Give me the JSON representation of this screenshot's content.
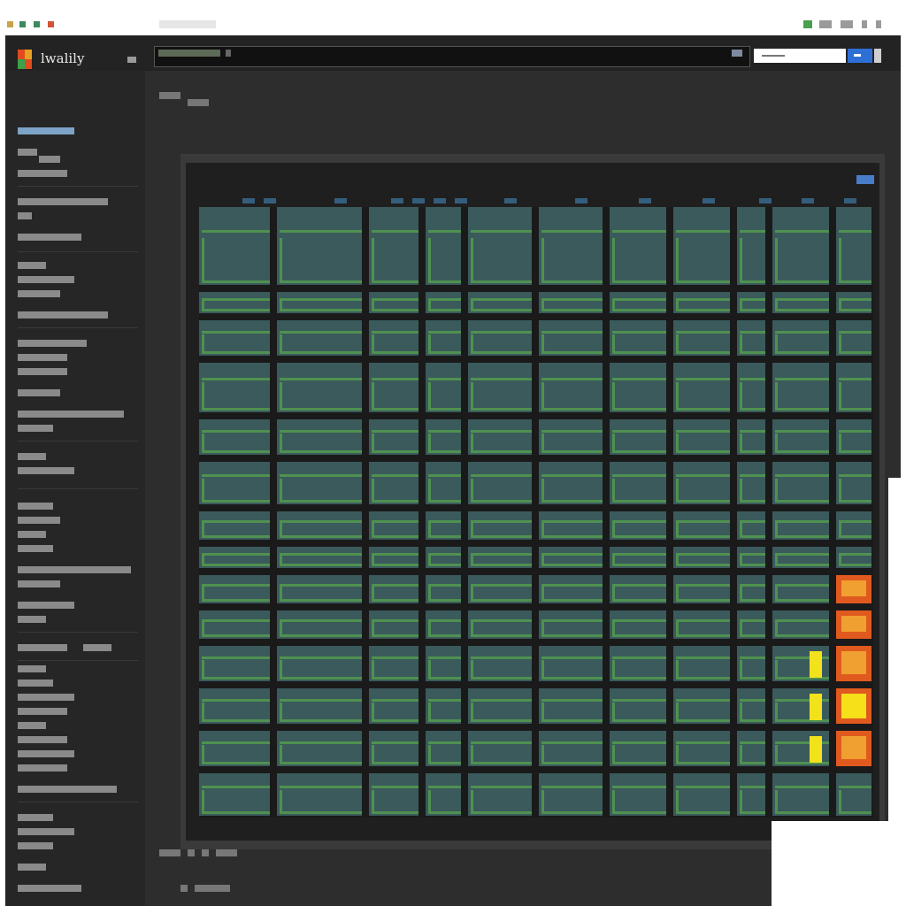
{
  "app": {
    "brand": "lwalily"
  },
  "header": {
    "email_placeholder": ""
  },
  "colors": {
    "accent": "#2e6fd6",
    "cell": "#3b5a5c",
    "cell_stroke": "#4f9150",
    "alert_orange": "#e05a1f",
    "alert_amber": "#f0a030",
    "alert_yellow": "#f2e21c"
  },
  "icons": {
    "logo": "app-logo-icon",
    "search": "search-icon",
    "go": "arrow-right-icon"
  },
  "grid": {
    "rows": 15,
    "columns": 12,
    "orange_cells": [
      [
        9,
        11
      ],
      [
        10,
        11
      ],
      [
        11,
        11
      ],
      [
        13,
        11
      ]
    ],
    "yellow_cells": [
      [
        12,
        11
      ]
    ],
    "yellow_bars": [
      [
        11,
        10
      ],
      [
        12,
        10
      ],
      [
        13,
        10
      ]
    ]
  }
}
